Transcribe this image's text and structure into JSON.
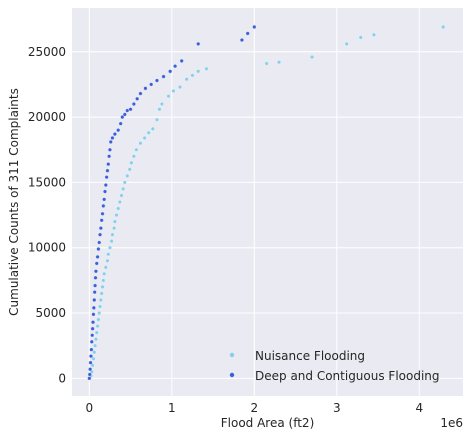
{
  "chart_data": {
    "type": "scatter",
    "title": "",
    "xlabel": "Flood Area (ft2)",
    "ylabel": "Cumulative Counts of 311 Complaints",
    "x_offset_text": "1e6",
    "xlim": [
      -0.21,
      4.53
    ],
    "ylim": [
      -1350,
      28350
    ],
    "x_ticks": [
      0,
      1,
      2,
      3,
      4
    ],
    "x_tick_labels": [
      "0",
      "1",
      "2",
      "3",
      "4"
    ],
    "y_ticks": [
      0,
      5000,
      10000,
      15000,
      20000,
      25000
    ],
    "y_tick_labels": [
      "0",
      "5000",
      "10000",
      "15000",
      "20000",
      "25000"
    ],
    "grid": true,
    "legend_position": "lower right",
    "background_color": "#eaeaf2",
    "series": [
      {
        "name": "Nuisance Flooding",
        "color": "#87ceeb",
        "points": [
          [
            0.005,
            0
          ],
          [
            0.02,
            200
          ],
          [
            0.03,
            500
          ],
          [
            0.04,
            1000
          ],
          [
            0.05,
            1500
          ],
          [
            0.06,
            2000
          ],
          [
            0.07,
            2500
          ],
          [
            0.08,
            3000
          ],
          [
            0.09,
            3500
          ],
          [
            0.1,
            4000
          ],
          [
            0.11,
            4500
          ],
          [
            0.12,
            5000
          ],
          [
            0.13,
            5500
          ],
          [
            0.14,
            6000
          ],
          [
            0.15,
            6500
          ],
          [
            0.16,
            7000
          ],
          [
            0.17,
            7500
          ],
          [
            0.18,
            8000
          ],
          [
            0.2,
            8500
          ],
          [
            0.22,
            9000
          ],
          [
            0.23,
            9500
          ],
          [
            0.25,
            10000
          ],
          [
            0.27,
            10500
          ],
          [
            0.28,
            11000
          ],
          [
            0.3,
            11500
          ],
          [
            0.31,
            12000
          ],
          [
            0.33,
            12500
          ],
          [
            0.35,
            13000
          ],
          [
            0.37,
            13500
          ],
          [
            0.39,
            14000
          ],
          [
            0.41,
            14500
          ],
          [
            0.43,
            15000
          ],
          [
            0.46,
            15500
          ],
          [
            0.49,
            16000
          ],
          [
            0.51,
            16500
          ],
          [
            0.54,
            17000
          ],
          [
            0.57,
            17500
          ],
          [
            0.62,
            18000
          ],
          [
            0.67,
            18400
          ],
          [
            0.72,
            18800
          ],
          [
            0.77,
            19100
          ],
          [
            0.82,
            19800
          ],
          [
            0.85,
            20600
          ],
          [
            0.88,
            21000
          ],
          [
            0.96,
            21600
          ],
          [
            1.02,
            22000
          ],
          [
            1.1,
            22300
          ],
          [
            1.18,
            22900
          ],
          [
            1.25,
            23200
          ],
          [
            1.32,
            23500
          ],
          [
            1.42,
            23700
          ],
          [
            2.15,
            24100
          ],
          [
            2.3,
            24200
          ],
          [
            2.7,
            24600
          ],
          [
            3.12,
            25600
          ],
          [
            3.29,
            26100
          ],
          [
            3.45,
            26300
          ],
          [
            4.29,
            26900
          ]
        ]
      },
      {
        "name": "Deep and Contiguous Flooding",
        "color": "#3b5fd9",
        "points": [
          [
            0.0,
            0
          ],
          [
            0.005,
            300
          ],
          [
            0.01,
            700
          ],
          [
            0.015,
            1200
          ],
          [
            0.02,
            1700
          ],
          [
            0.025,
            2200
          ],
          [
            0.03,
            2800
          ],
          [
            0.035,
            3300
          ],
          [
            0.04,
            3800
          ],
          [
            0.045,
            4300
          ],
          [
            0.05,
            4900
          ],
          [
            0.055,
            5400
          ],
          [
            0.06,
            6000
          ],
          [
            0.065,
            6600
          ],
          [
            0.07,
            7100
          ],
          [
            0.075,
            7700
          ],
          [
            0.08,
            8200
          ],
          [
            0.09,
            8800
          ],
          [
            0.1,
            9300
          ],
          [
            0.11,
            9900
          ],
          [
            0.12,
            10400
          ],
          [
            0.13,
            11000
          ],
          [
            0.14,
            11500
          ],
          [
            0.15,
            12100
          ],
          [
            0.16,
            12600
          ],
          [
            0.17,
            13200
          ],
          [
            0.18,
            13700
          ],
          [
            0.19,
            14300
          ],
          [
            0.2,
            14800
          ],
          [
            0.21,
            15400
          ],
          [
            0.22,
            15900
          ],
          [
            0.23,
            16400
          ],
          [
            0.24,
            17000
          ],
          [
            0.25,
            17500
          ],
          [
            0.26,
            18100
          ],
          [
            0.28,
            18400
          ],
          [
            0.31,
            18700
          ],
          [
            0.35,
            19000
          ],
          [
            0.38,
            19500
          ],
          [
            0.4,
            20000
          ],
          [
            0.43,
            20200
          ],
          [
            0.46,
            20500
          ],
          [
            0.5,
            20600
          ],
          [
            0.54,
            21000
          ],
          [
            0.58,
            21400
          ],
          [
            0.62,
            21800
          ],
          [
            0.68,
            22200
          ],
          [
            0.75,
            22500
          ],
          [
            0.82,
            22800
          ],
          [
            0.9,
            23100
          ],
          [
            0.98,
            23500
          ],
          [
            1.04,
            23900
          ],
          [
            1.12,
            24300
          ],
          [
            1.32,
            25600
          ],
          [
            1.85,
            25900
          ],
          [
            1.92,
            26400
          ],
          [
            2.0,
            26900
          ]
        ]
      }
    ]
  }
}
